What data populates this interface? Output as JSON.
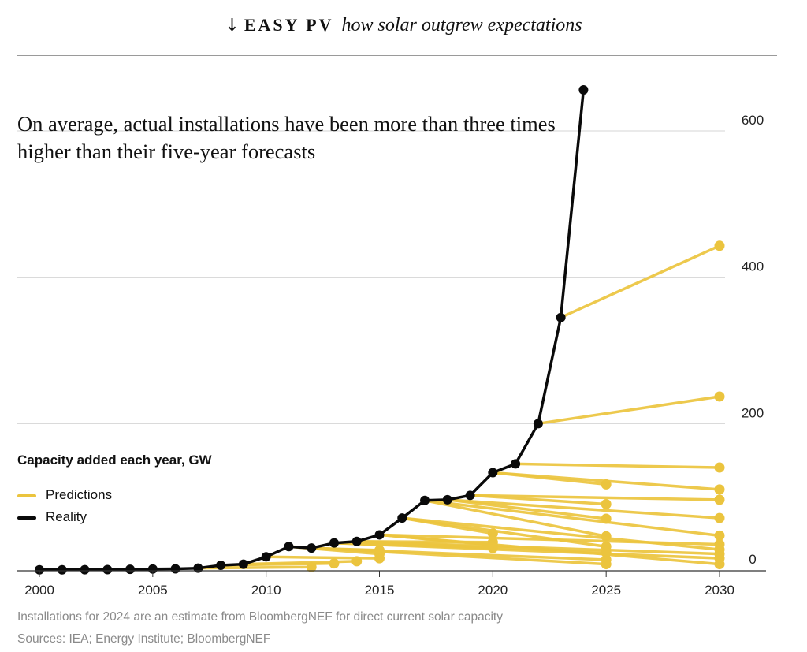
{
  "header": {
    "arrow": "↓",
    "brand": "EASY PV",
    "tagline": "how solar outgrew expectations"
  },
  "legend": {
    "title": "Capacity added each year, GW",
    "predictions": "Predictions",
    "reality": "Reality"
  },
  "footnotes": {
    "note": "Installations for 2024 are an estimate from BloombergNEF for direct current solar capacity",
    "sources": "Sources: IEA; Energy Institute; BloombergNEF"
  },
  "colors": {
    "prediction": "#ebc43e",
    "reality": "#0a0a0a",
    "grid": "#d4d4d4",
    "axis": "#333333"
  },
  "chart_data": {
    "type": "line",
    "title": "On average, actual installations have been more than three times higher than their five-year forecasts",
    "ylabel": "Capacity added each year, GW",
    "xlabel": "",
    "xlim": [
      2000,
      2030
    ],
    "ylim": [
      0,
      660
    ],
    "x_ticks": [
      2000,
      2005,
      2010,
      2015,
      2020,
      2025,
      2030
    ],
    "y_ticks": [
      0,
      200,
      400,
      600
    ],
    "grid": true,
    "reality": {
      "name": "Reality",
      "x": [
        2000,
        2001,
        2002,
        2003,
        2004,
        2005,
        2006,
        2007,
        2008,
        2009,
        2010,
        2011,
        2012,
        2013,
        2014,
        2015,
        2016,
        2017,
        2018,
        2019,
        2020,
        2021,
        2022,
        2023,
        2024
      ],
      "values": [
        0.3,
        0.3,
        0.4,
        0.5,
        1.0,
        1.4,
        1.6,
        2.5,
        6.5,
        8,
        18,
        32,
        30,
        37,
        39,
        48,
        71,
        95,
        96,
        102,
        133,
        145,
        200,
        345,
        656
      ]
    },
    "predictions": [
      {
        "name": "Predictions",
        "x": [
          2007,
          2012
        ],
        "values": [
          2.5,
          4
        ]
      },
      {
        "name": "Predictions",
        "x": [
          2008,
          2013
        ],
        "values": [
          6.5,
          9
        ]
      },
      {
        "name": "Predictions",
        "x": [
          2009,
          2014
        ],
        "values": [
          8,
          12
        ]
      },
      {
        "name": "Predictions",
        "x": [
          2010,
          2015
        ],
        "values": [
          18,
          16
        ]
      },
      {
        "name": "Predictions",
        "x": [
          2011,
          2015
        ],
        "values": [
          32,
          22
        ]
      },
      {
        "name": "Predictions",
        "x": [
          2012,
          2015
        ],
        "values": [
          30,
          27
        ]
      },
      {
        "name": "Predictions",
        "x": [
          2013,
          2020
        ],
        "values": [
          37,
          30
        ]
      },
      {
        "name": "Predictions",
        "x": [
          2014,
          2020
        ],
        "values": [
          39,
          38
        ]
      },
      {
        "name": "Predictions",
        "x": [
          2015,
          2020
        ],
        "values": [
          48,
          34
        ]
      },
      {
        "name": "Predictions",
        "x": [
          2016,
          2020
        ],
        "values": [
          71,
          50
        ]
      },
      {
        "name": "Predictions",
        "x": [
          2017,
          2025
        ],
        "values": [
          95,
          46
        ]
      },
      {
        "name": "Predictions",
        "x": [
          2018,
          2025
        ],
        "values": [
          96,
          70
        ]
      },
      {
        "name": "Predictions",
        "x": [
          2019,
          2025
        ],
        "values": [
          102,
          90
        ]
      },
      {
        "name": "Predictions",
        "x": [
          2020,
          2025
        ],
        "values": [
          133,
          117
        ]
      },
      {
        "name": "Predictions",
        "x": [
          2020,
          2030
        ],
        "values": [
          133,
          110
        ]
      },
      {
        "name": "Predictions",
        "x": [
          2021,
          2030
        ],
        "values": [
          145,
          140
        ]
      },
      {
        "name": "Predictions",
        "x": [
          2022,
          2030
        ],
        "values": [
          200,
          237
        ]
      },
      {
        "name": "Predictions",
        "x": [
          2023,
          2030
        ],
        "values": [
          345,
          443
        ]
      },
      {
        "name": "Predictions",
        "x": [
          2019,
          2030
        ],
        "values": [
          102,
          96
        ]
      },
      {
        "name": "Predictions",
        "x": [
          2018,
          2030
        ],
        "values": [
          96,
          71
        ]
      },
      {
        "name": "Predictions",
        "x": [
          2017,
          2030
        ],
        "values": [
          95,
          47
        ]
      },
      {
        "name": "Predictions",
        "x": [
          2015,
          2030
        ],
        "values": [
          48,
          35
        ]
      },
      {
        "name": "Predictions",
        "x": [
          2016,
          2030
        ],
        "values": [
          71,
          28
        ]
      },
      {
        "name": "Predictions",
        "x": [
          2014,
          2030
        ],
        "values": [
          39,
          22
        ]
      },
      {
        "name": "Predictions",
        "x": [
          2013,
          2030
        ],
        "values": [
          37,
          16
        ]
      },
      {
        "name": "Predictions",
        "x": [
          2015,
          2030
        ],
        "values": [
          48,
          8
        ]
      },
      {
        "name": "Predictions",
        "x": [
          2016,
          2025
        ],
        "values": [
          71,
          32
        ]
      },
      {
        "name": "Predictions",
        "x": [
          2014,
          2025
        ],
        "values": [
          39,
          24
        ]
      },
      {
        "name": "Predictions",
        "x": [
          2012,
          2025
        ],
        "values": [
          30,
          14
        ]
      },
      {
        "name": "Predictions",
        "x": [
          2011,
          2025
        ],
        "values": [
          32,
          8
        ]
      }
    ]
  }
}
